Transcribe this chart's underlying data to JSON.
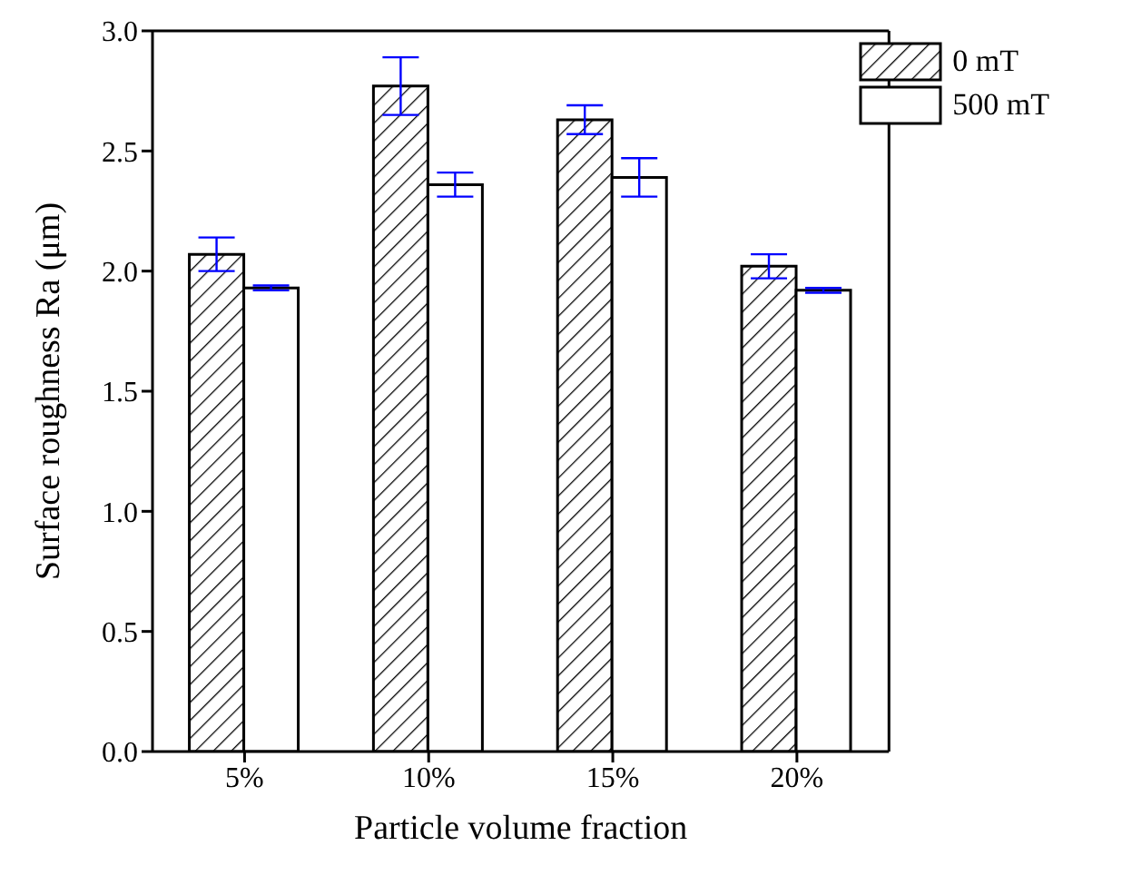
{
  "chart_data": {
    "type": "bar",
    "xlabel": "Particle volume fraction",
    "ylabel": "Surface roughness Ra  (μm)",
    "categories": [
      "5%",
      "10%",
      "15%",
      "20%"
    ],
    "series": [
      {
        "name": "0 mT",
        "color": "#000000",
        "values": [
          2.07,
          2.77,
          2.63,
          2.02
        ],
        "errors": [
          0.07,
          0.12,
          0.06,
          0.05
        ]
      },
      {
        "name": "500 mT",
        "color": "#ffffff",
        "values": [
          1.93,
          2.36,
          2.39,
          1.92
        ],
        "errors": [
          0.01,
          0.05,
          0.08,
          0.01
        ]
      }
    ],
    "ylim": [
      0,
      3
    ],
    "yticks": [
      {
        "value": 0,
        "label": "0.0"
      },
      {
        "value": 0.5,
        "label": "0.5"
      },
      {
        "value": 1,
        "label": "1.0"
      },
      {
        "value": 1.5,
        "label": "1.5"
      },
      {
        "value": 2,
        "label": "2.0"
      },
      {
        "value": 2.5,
        "label": "2.5"
      },
      {
        "value": 3,
        "label": "3.0"
      }
    ],
    "legend": "top right",
    "grid": false
  }
}
